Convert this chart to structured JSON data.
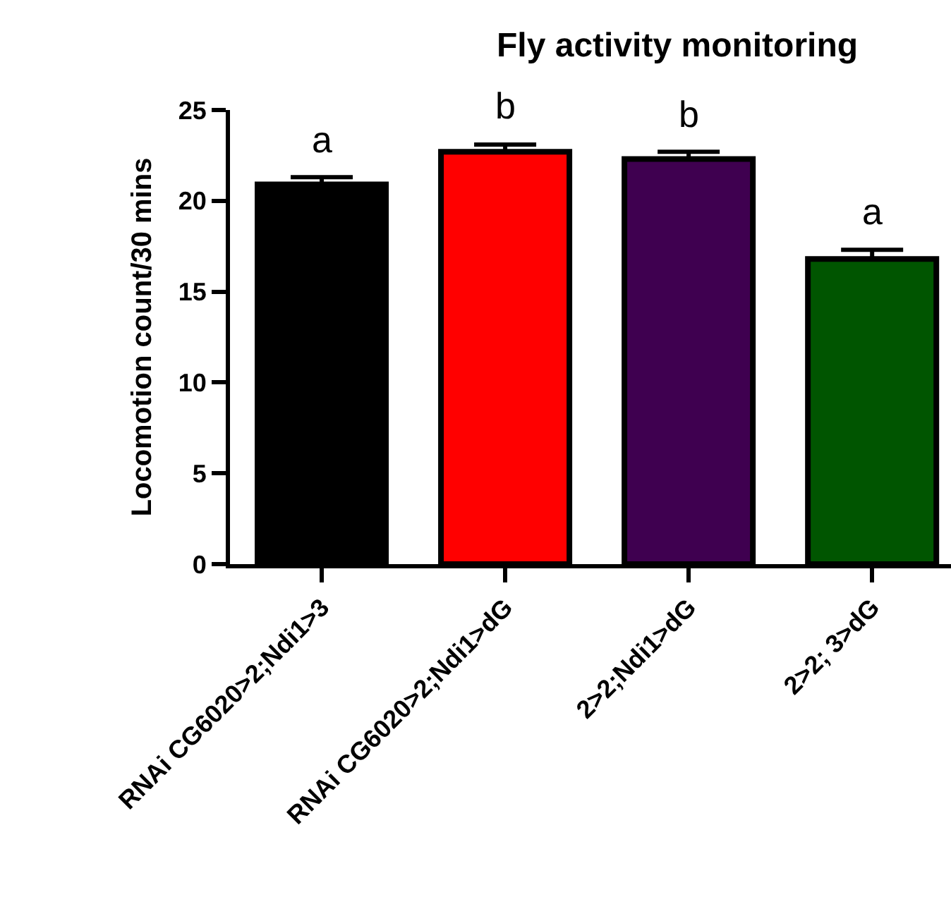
{
  "chart_data": {
    "type": "bar",
    "title": "Fly activity monitoring",
    "ylabel": "Locomotion count/30 mins",
    "categories": [
      "RNAi CG6020>2;Ndi1>3",
      "RNAi CG6020>2;Ndi1>dG",
      "2>2;Ndi1>dG",
      "2>2; 3>dG"
    ],
    "values": [
      20.9,
      22.7,
      22.3,
      16.8
    ],
    "colors": [
      "#000000",
      "#ff0000",
      "#3f0050",
      "#005500"
    ],
    "errors": [
      [
        20.9,
        21.3
      ],
      [
        22.7,
        23.1
      ],
      [
        22.3,
        22.7
      ],
      [
        16.8,
        17.3
      ]
    ],
    "ylim": [
      0,
      25
    ],
    "yticks": [
      0,
      5,
      10,
      15,
      20,
      25
    ],
    "grid": false,
    "annotations": [
      {
        "text": "a",
        "x": "RNAi CG6020>2;Ndi1>3",
        "y": 21.3
      },
      {
        "text": "b",
        "x": "RNAi CG6020>2;Ndi1>dG",
        "y": 23.1
      },
      {
        "text": "b",
        "x": "2>2;Ndi1>dG",
        "y": 22.7
      },
      {
        "text": "a",
        "x": "2>2; 3>dG",
        "y": 17.3
      }
    ]
  }
}
